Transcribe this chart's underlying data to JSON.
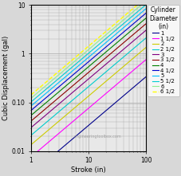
{
  "title": "",
  "xlabel": "Stroke (in)",
  "ylabel": "Cubic Displacement (gal)",
  "xlim": [
    1,
    100
  ],
  "ylim": [
    0.01,
    10
  ],
  "watermark": "engineeringtoolbox.com",
  "legend_title": "Cylinder\nDiameter\n(in)",
  "cylinders": [
    {
      "diameter": 1,
      "label": "1",
      "color": "#00008B",
      "linestyle": "-",
      "linewidth": 0.8
    },
    {
      "diameter": 1.5,
      "label": "1 1/2",
      "color": "#FF00FF",
      "linestyle": "-",
      "linewidth": 0.8
    },
    {
      "diameter": 2,
      "label": "2",
      "color": "#CCCC00",
      "linestyle": "-",
      "linewidth": 0.8
    },
    {
      "diameter": 2.5,
      "label": "2 1/2",
      "color": "#00CCCC",
      "linestyle": "-",
      "linewidth": 0.8
    },
    {
      "diameter": 3,
      "label": "3",
      "color": "#800080",
      "linestyle": "-",
      "linewidth": 0.8
    },
    {
      "diameter": 3.5,
      "label": "3 1/2",
      "color": "#8B0000",
      "linestyle": "-",
      "linewidth": 0.8
    },
    {
      "diameter": 4,
      "label": "4",
      "color": "#008000",
      "linestyle": "-",
      "linewidth": 0.8
    },
    {
      "diameter": 4.5,
      "label": "4 1/2",
      "color": "#0000CD",
      "linestyle": "-",
      "linewidth": 0.8
    },
    {
      "diameter": 5,
      "label": "5",
      "color": "#00BFFF",
      "linestyle": "-",
      "linewidth": 0.8
    },
    {
      "diameter": 5.5,
      "label": "5 1/2",
      "color": "#00CED1",
      "linestyle": "-",
      "linewidth": 0.8
    },
    {
      "diameter": 6,
      "label": "6",
      "color": "#90EE90",
      "linestyle": "-",
      "linewidth": 0.8
    },
    {
      "diameter": 6.5,
      "label": "6 1/2",
      "color": "#FFFF00",
      "linestyle": "--",
      "linewidth": 1.0
    }
  ],
  "figure_bg": "#d8d8d8",
  "plot_bg": "#e8e8e8",
  "grid_color": "#aaaaaa",
  "legend_fontsize": 5.0,
  "legend_title_fontsize": 5.5,
  "axis_label_fontsize": 6.0,
  "tick_fontsize": 5.5,
  "yticks": [
    0.01,
    0.1,
    1,
    10
  ],
  "ytick_labels": [
    "0.01",
    "0.10",
    "1",
    "10"
  ],
  "xticks": [
    1,
    10,
    100
  ],
  "xtick_labels": [
    "1",
    "10",
    "100"
  ]
}
